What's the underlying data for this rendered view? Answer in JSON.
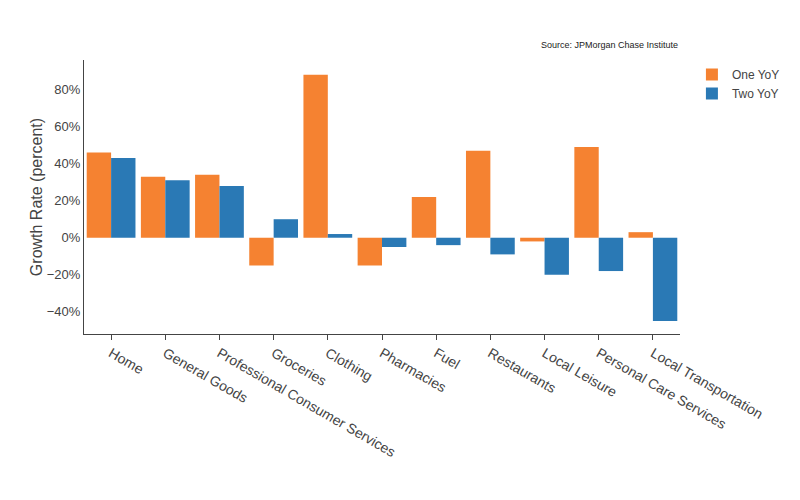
{
  "chart_data": {
    "type": "bar",
    "annotations": [
      "Source: JPMorgan Chase Institute"
    ],
    "y_label": "Growth Rate (percent)",
    "categories": [
      "Home",
      "General Goods",
      "Professional Consumer Services",
      "Groceries",
      "Clothing",
      "Pharmacies",
      "Fuel",
      "Restaurants",
      "Local Leisure",
      "Personal Care Services",
      "Local Transportation"
    ],
    "series": [
      {
        "name": "One YoY",
        "color": "#f58231",
        "values": [
          46,
          33,
          34,
          -15,
          88,
          -15,
          22,
          47,
          -2,
          49,
          3
        ]
      },
      {
        "name": "Two YoY",
        "color": "#2a79b5",
        "values": [
          43,
          31,
          28,
          10,
          2,
          -5,
          -4,
          -9,
          -20,
          -18,
          -45
        ]
      }
    ],
    "ylim": [
      -52,
      96
    ],
    "yticks": [
      {
        "value": -40,
        "label": "−40%"
      },
      {
        "value": -20,
        "label": "−20%"
      },
      {
        "value": 0,
        "label": "0%"
      },
      {
        "value": 20,
        "label": "20%"
      },
      {
        "value": 40,
        "label": "40%"
      },
      {
        "value": 60,
        "label": "60%"
      },
      {
        "value": 80,
        "label": "80%"
      }
    ],
    "grid": false,
    "legend": "top right",
    "data_labels": false
  }
}
